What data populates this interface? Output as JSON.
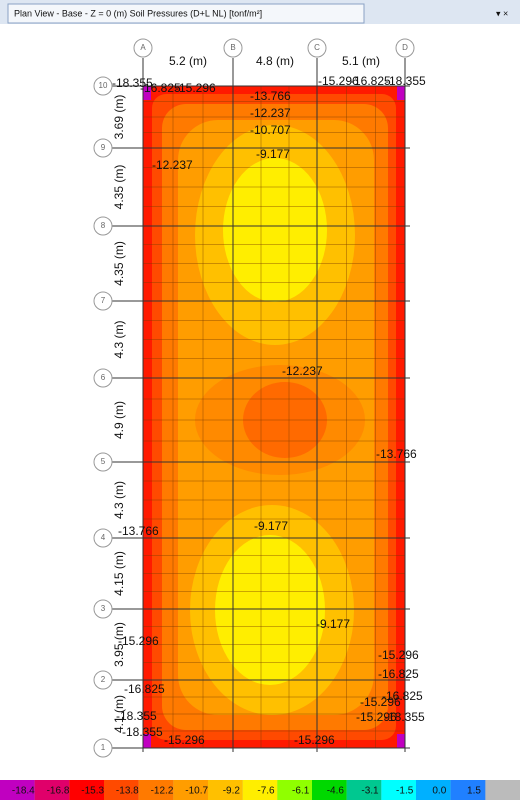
{
  "tab": {
    "title": "Plan View - Base - Z = 0 (m)   Soil Pressures   (D+L NL)   [tonf/m²]",
    "controls": "▾ ×"
  },
  "grid": {
    "columns": [
      "A",
      "B",
      "C",
      "D"
    ],
    "column_spacings": [
      "5.2 (m)",
      "4.8 (m)",
      "5.1 (m)"
    ],
    "rows": [
      "10",
      "9",
      "8",
      "7",
      "6",
      "5",
      "4",
      "3",
      "2",
      "1"
    ],
    "row_spacings": [
      "3.69 (m)",
      "4.35 (m)",
      "4.35 (m)",
      "4.3 (m)",
      "4.9 (m)",
      "4.3 (m)",
      "4.15 (m)",
      "3.95 (m)",
      "4.1 (m)"
    ]
  },
  "contour_labels": [
    "-18.355",
    "-16.825",
    "-15.296",
    "-15.296",
    "-16.825",
    "-18.355",
    "-13.766",
    "-12.237",
    "-10.707",
    "-9.177",
    "-12.237",
    "-12.237",
    "-13.766",
    "-13.766",
    "-9.177",
    "-9.177",
    "-15.296",
    "-15.296",
    "-16.825",
    "-16.825",
    "-16.825",
    "-15.296",
    "-18.355",
    "-15.296",
    "-18.355",
    "-18.355",
    "-15.296",
    "-15.296"
  ],
  "legend": {
    "values": [
      "-18.4",
      "-16.8",
      "-15.3",
      "-13.8",
      "-12.2",
      "-10.7",
      "-9.2",
      "-7.6",
      "-6.1",
      "-4.6",
      "-3.1",
      "-1.5",
      "0.0",
      "1.5"
    ]
  }
}
